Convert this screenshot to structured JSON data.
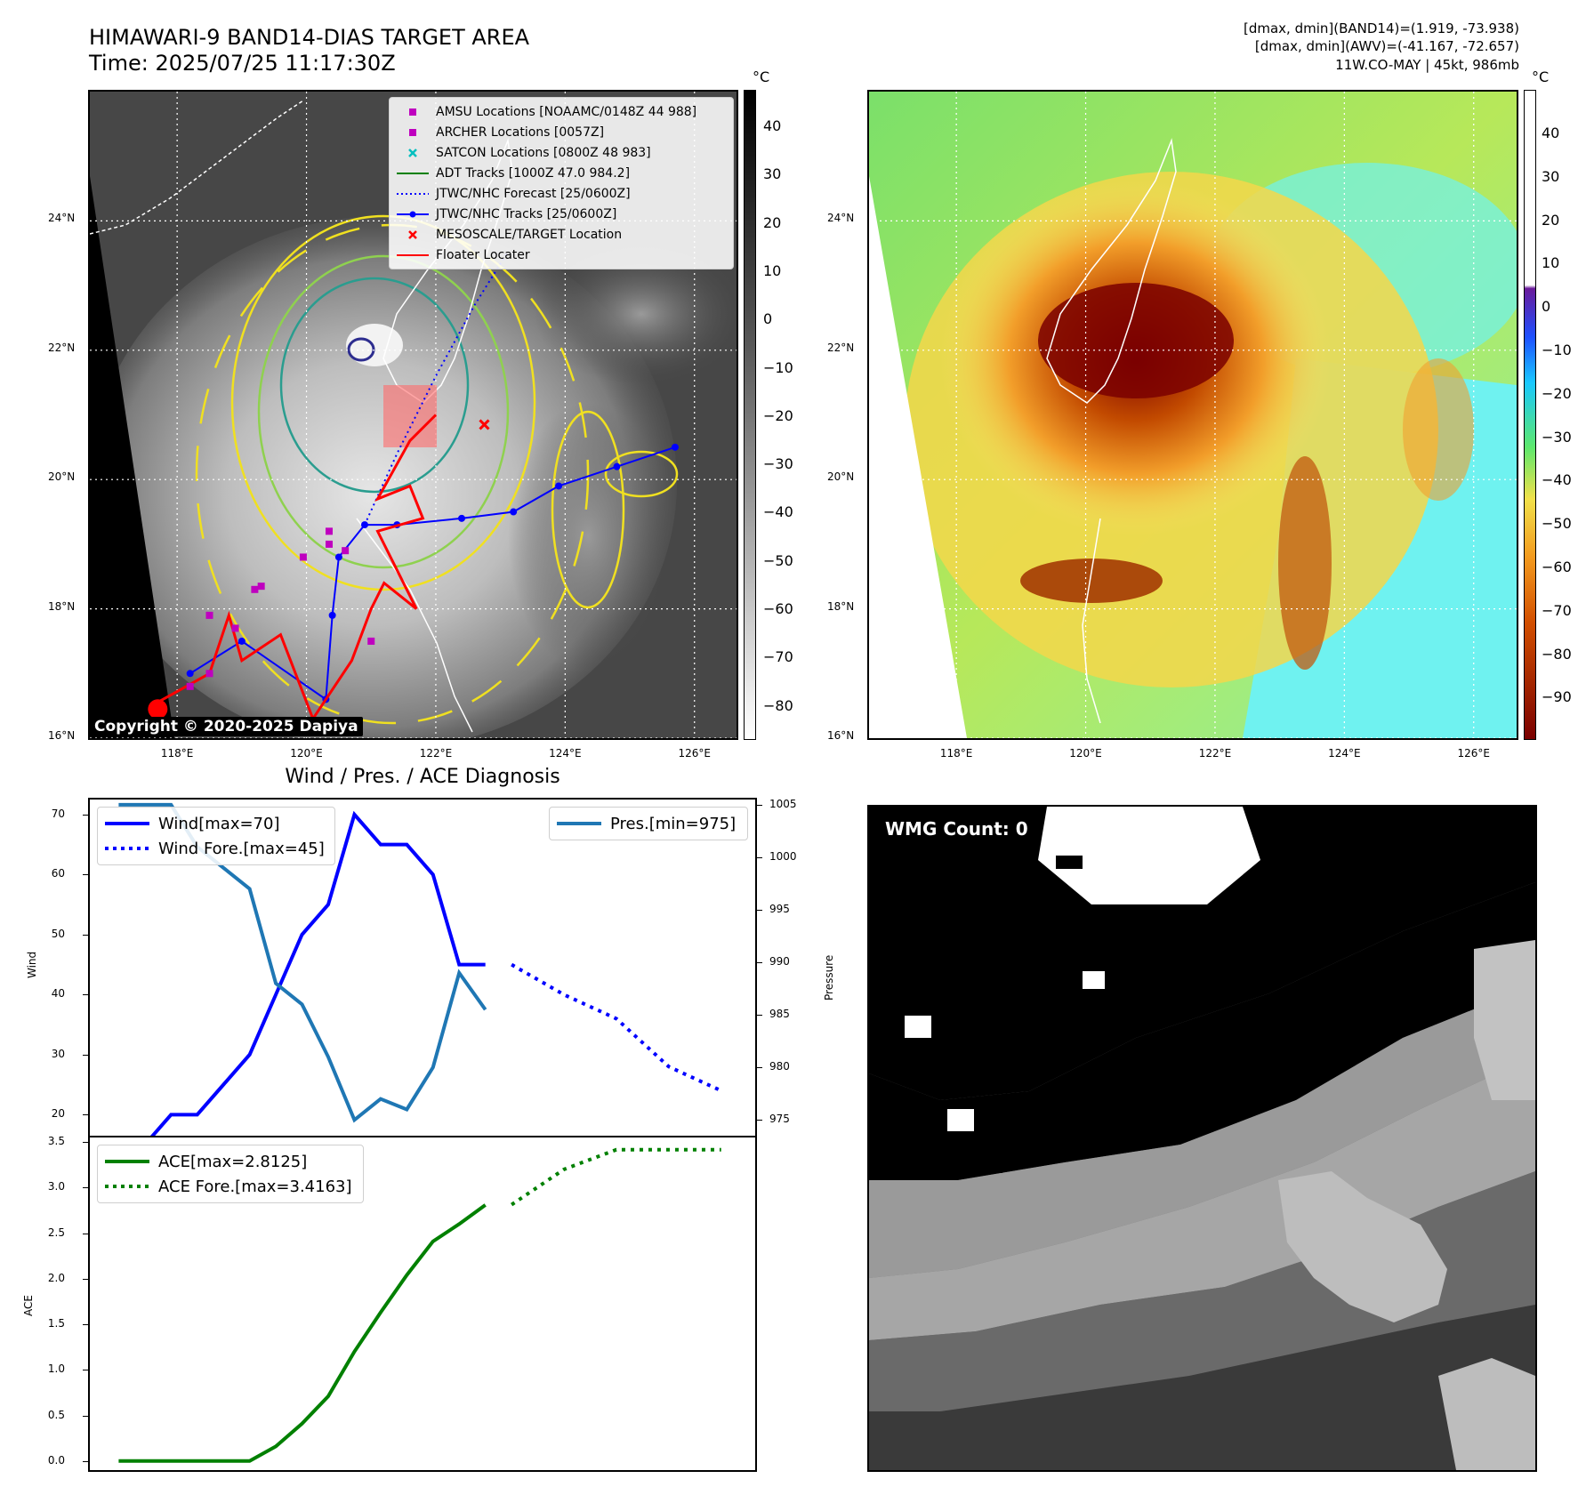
{
  "header": {
    "title_line1": "HIMAWARI-9 BAND14-DIAS TARGET AREA",
    "title_line2": "Time: 2025/07/25 11:17:30Z",
    "info_line1": "[dmax, dmin](BAND14)=(1.919, -73.938)",
    "info_line2": "[dmax, dmin](AWV)=(-41.167, -72.657)",
    "info_line3": "11W.CO-MAY | 45kt, 986mb"
  },
  "map": {
    "lat_labels": [
      "24°N",
      "22°N",
      "20°N",
      "18°N",
      "16°N"
    ],
    "lon_labels": [
      "118°E",
      "120°E",
      "122°E",
      "124°E",
      "126°E"
    ],
    "copyright": "Copyright © 2020-2025 Dapiya",
    "legend": [
      {
        "label": "AMSU Locations [NOAAMC/0148Z 44 988]",
        "marker": "square",
        "color": "#bf00bf"
      },
      {
        "label": "ARCHER Locations [0057Z]",
        "marker": "square",
        "color": "#bf00bf"
      },
      {
        "label": "SATCON Locations [0800Z 48 983]",
        "marker": "x",
        "color": "#00bfbf"
      },
      {
        "label": "ADT Tracks [1000Z 47.0 984.2]",
        "marker": "line",
        "color": "#008000"
      },
      {
        "label": "JTWC/NHC Forecast [25/0600Z]",
        "marker": "dotted",
        "color": "#0000ff"
      },
      {
        "label": "JTWC/NHC Tracks [25/0600Z]",
        "marker": "line-dot",
        "color": "#0000ff"
      },
      {
        "label": "MESOSCALE/TARGET Location",
        "marker": "x",
        "color": "#ff0000"
      },
      {
        "label": "Floater Locater",
        "marker": "line",
        "color": "#ff0000"
      }
    ],
    "jtwc_track": [
      [
        125.7,
        20.5
      ],
      [
        124.8,
        20.2
      ],
      [
        123.9,
        19.9
      ],
      [
        123.2,
        19.5
      ],
      [
        122.4,
        19.4
      ],
      [
        121.4,
        19.3
      ],
      [
        120.9,
        19.3
      ],
      [
        120.5,
        18.8
      ],
      [
        120.4,
        17.9
      ],
      [
        120.3,
        16.6
      ],
      [
        119.0,
        17.5
      ],
      [
        118.2,
        17.0
      ]
    ],
    "forecast_track": [
      [
        120.9,
        19.3
      ],
      [
        121.4,
        20.4
      ],
      [
        122.0,
        21.6
      ],
      [
        122.6,
        22.7
      ],
      [
        123.1,
        23.5
      ]
    ],
    "target_location": {
      "lon": 122.75,
      "lat": 20.85
    },
    "colorbar_unit": "°C",
    "colorbar_ticks": [
      "40",
      "30",
      "20",
      "10",
      "0",
      "−10",
      "−20",
      "−30",
      "−40",
      "−50",
      "−60",
      "−70",
      "−80"
    ],
    "awv_colorbar_ticks": [
      "40",
      "30",
      "20",
      "10",
      "0",
      "−10",
      "−20",
      "−30",
      "−40",
      "−50",
      "−60",
      "−70",
      "−80",
      "−90"
    ]
  },
  "chart_data": [
    {
      "type": "line",
      "title": "Wind / Pres. / ACE Diagnosis",
      "ylabel": "Wind",
      "y2label": "Pressure",
      "ylim": [
        16.5,
        72.5
      ],
      "y2lim": [
        973.5,
        1005.5
      ],
      "yticks": [
        20,
        30,
        40,
        50,
        60,
        70
      ],
      "y2ticks": [
        975,
        980,
        985,
        990,
        995,
        1000,
        1005
      ],
      "series": [
        {
          "name": "Wind[max=70]",
          "style": "solid",
          "color": "#0000ff",
          "axis": "left",
          "x": [
            0,
            1,
            2,
            3,
            4,
            5,
            6,
            7,
            8,
            9,
            10,
            11,
            12,
            13,
            14,
            15
          ],
          "values": [
            15,
            15,
            20,
            20,
            25,
            30,
            40,
            50,
            55,
            70,
            65,
            65,
            60,
            45,
            45,
            null
          ]
        },
        {
          "name": "Wind Fore.[max=45]",
          "style": "dotted",
          "color": "#0000ff",
          "axis": "left",
          "x": [
            15,
            17,
            19,
            21,
            23
          ],
          "values": [
            45,
            40,
            36,
            28,
            24
          ]
        },
        {
          "name": "Pres.[min=975]",
          "style": "solid",
          "color": "#1f77b4",
          "axis": "right",
          "x": [
            0,
            1,
            2,
            3,
            4,
            5,
            6,
            7,
            8,
            9,
            10,
            11,
            12,
            13,
            14
          ],
          "values": [
            1005,
            1005,
            1005,
            1001,
            999,
            997,
            988,
            986,
            981,
            975,
            977,
            976,
            980,
            989,
            985.5
          ]
        }
      ]
    },
    {
      "type": "line",
      "ylabel": "ACE",
      "ylim": [
        -0.1,
        3.55
      ],
      "yticks": [
        0.0,
        0.5,
        1.0,
        1.5,
        2.0,
        2.5,
        3.0,
        3.5
      ],
      "series": [
        {
          "name": "ACE[max=2.8125]",
          "style": "solid",
          "color": "#008000",
          "x": [
            0,
            1,
            2,
            3,
            4,
            5,
            6,
            7,
            8,
            9,
            10,
            11,
            12,
            13,
            14,
            15
          ],
          "values": [
            0,
            0,
            0,
            0,
            0,
            0,
            0.16,
            0.41,
            0.71,
            1.2,
            1.63,
            2.04,
            2.41,
            2.6,
            2.81,
            null
          ]
        },
        {
          "name": "ACE Fore.[max=3.4163]",
          "style": "dotted",
          "color": "#008000",
          "x": [
            15,
            17,
            19,
            21,
            23
          ],
          "values": [
            2.8125,
            3.2,
            3.4163,
            3.4163,
            3.4163
          ]
        }
      ]
    }
  ],
  "wmg": {
    "badge": "WMG Count: 0"
  }
}
